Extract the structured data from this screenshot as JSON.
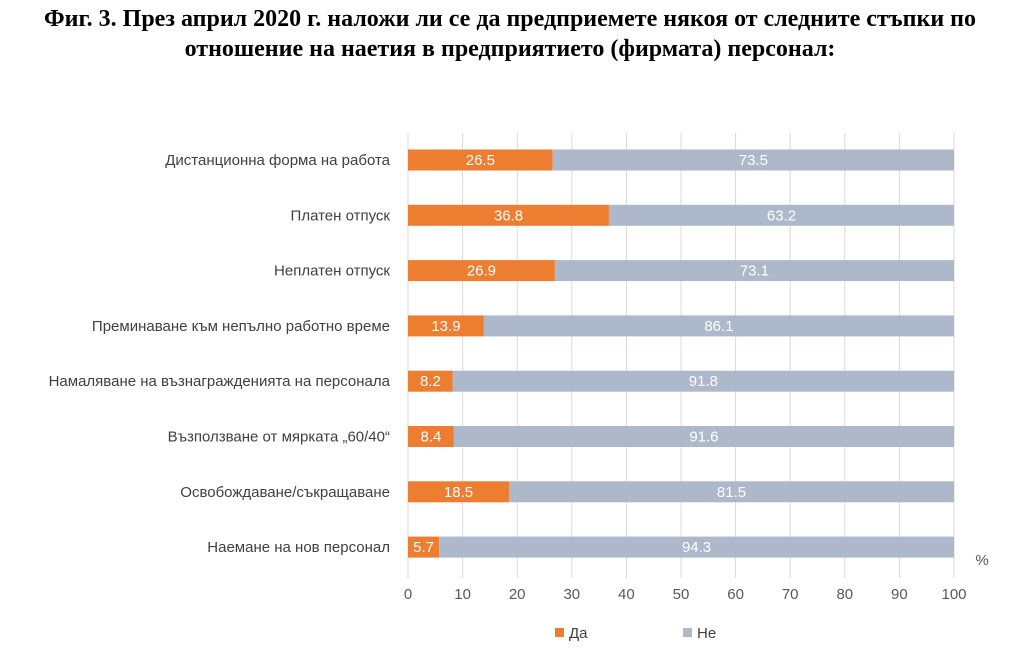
{
  "title": {
    "line1": "Фиг. 3. През април 2020 г. наложи ли се да предприемете някоя от следните стъпки по",
    "line2": "отношение на наетия в предприятието (фирмата) персонал:"
  },
  "chart_data": {
    "type": "bar",
    "orientation": "horizontal",
    "stacked": true,
    "categories": [
      "Дистанционна форма на работа",
      "Платен отпуск",
      "Неплатен отпуск",
      "Преминаване към непълно работно време",
      "Намаляване на възнагражденията на персонала",
      "Възползване от мярката „60/40“",
      "Освобождаване/съкращаване",
      "Наемане на нов персонал"
    ],
    "series": [
      {
        "name": "Да",
        "values": [
          26.5,
          36.8,
          26.9,
          13.9,
          8.2,
          8.4,
          18.5,
          5.7
        ],
        "color": "#ED7D31"
      },
      {
        "name": "Не",
        "values": [
          73.5,
          63.2,
          73.1,
          86.1,
          91.8,
          91.6,
          81.5,
          94.3
        ],
        "color": "#ADB9CA"
      }
    ],
    "xlim": [
      0,
      100
    ],
    "xticks": [
      0,
      10,
      20,
      30,
      40,
      50,
      60,
      70,
      80,
      90,
      100
    ],
    "unit_label": "%",
    "grid": "vertical",
    "gridColor": "#D9D9D9",
    "legend": "bottom-center"
  }
}
